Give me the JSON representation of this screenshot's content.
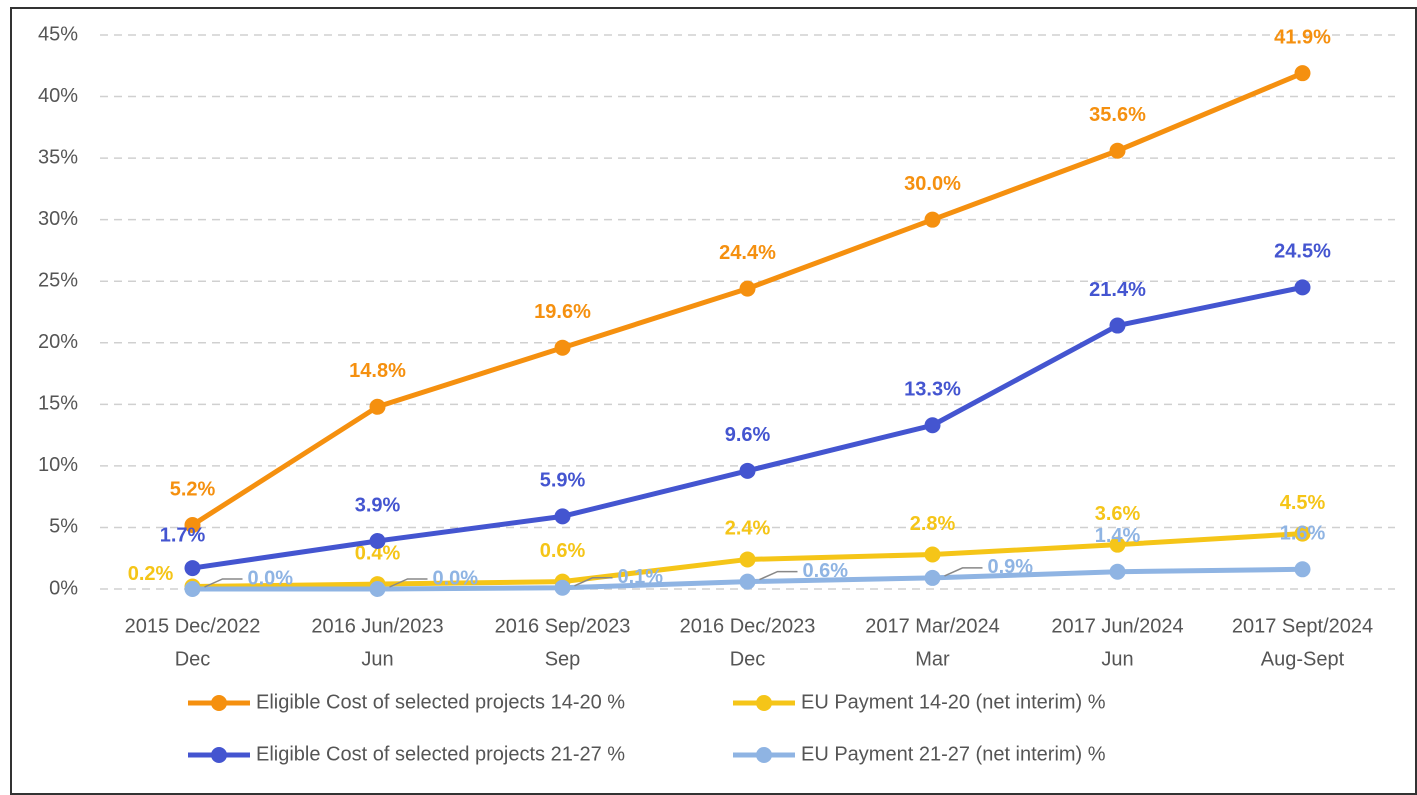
{
  "chart_data": {
    "type": "line",
    "categories": [
      [
        "2015 Dec/2022",
        "Dec"
      ],
      [
        "2016 Jun/2023",
        "Jun"
      ],
      [
        "2016 Sep/2023",
        "Sep"
      ],
      [
        "2016 Dec/2023",
        "Dec"
      ],
      [
        "2017 Mar/2024",
        "Mar"
      ],
      [
        "2017 Jun/2024",
        "Jun"
      ],
      [
        "2017 Sept/2024",
        "Aug-Sept"
      ]
    ],
    "series": [
      {
        "name": "Eligible Cost of selected projects 14-20 %",
        "color": "#f5900f",
        "values": [
          5.2,
          14.8,
          19.6,
          24.4,
          30.0,
          35.6,
          41.9
        ],
        "value_labels": [
          "5.2%",
          "14.8%",
          "19.6%",
          "24.4%",
          "30.0%",
          "35.6%",
          "41.9%"
        ]
      },
      {
        "name": "EU Payment 14-20 (net interim) %",
        "color": "#f5c518",
        "values": [
          0.2,
          0.4,
          0.6,
          2.4,
          2.8,
          3.6,
          4.5
        ],
        "value_labels": [
          "0.2%",
          "0.4%",
          "0.6%",
          "2.4%",
          "2.8%",
          "3.6%",
          "4.5%"
        ]
      },
      {
        "name": "Eligible Cost of selected projects 21-27 %",
        "color": "#4455d0",
        "values": [
          1.7,
          3.9,
          5.9,
          9.6,
          13.3,
          21.4,
          24.5
        ],
        "value_labels": [
          "1.7%",
          "3.9%",
          "5.9%",
          "9.6%",
          "13.3%",
          "21.4%",
          "24.5%"
        ]
      },
      {
        "name": "EU Payment 21-27 (net interim) %",
        "color": "#8fb4e3",
        "values": [
          0.0,
          0.0,
          0.1,
          0.6,
          0.9,
          1.4,
          1.6
        ],
        "value_labels": [
          "0.0%",
          "0.0%",
          "0.1%",
          "0.6%",
          "0.9%",
          "1.4%",
          "1.6%"
        ]
      }
    ],
    "ylim": [
      0,
      45
    ],
    "yticks": [
      {
        "value": 0,
        "label": "0%"
      },
      {
        "value": 5,
        "label": "5%"
      },
      {
        "value": 10,
        "label": "10%"
      },
      {
        "value": 15,
        "label": "15%"
      },
      {
        "value": 20,
        "label": "20%"
      },
      {
        "value": 25,
        "label": "25%"
      },
      {
        "value": 30,
        "label": "30%"
      },
      {
        "value": 35,
        "label": "35%"
      },
      {
        "value": 40,
        "label": "40%"
      },
      {
        "value": 45,
        "label": "45%"
      }
    ],
    "grid": true
  }
}
